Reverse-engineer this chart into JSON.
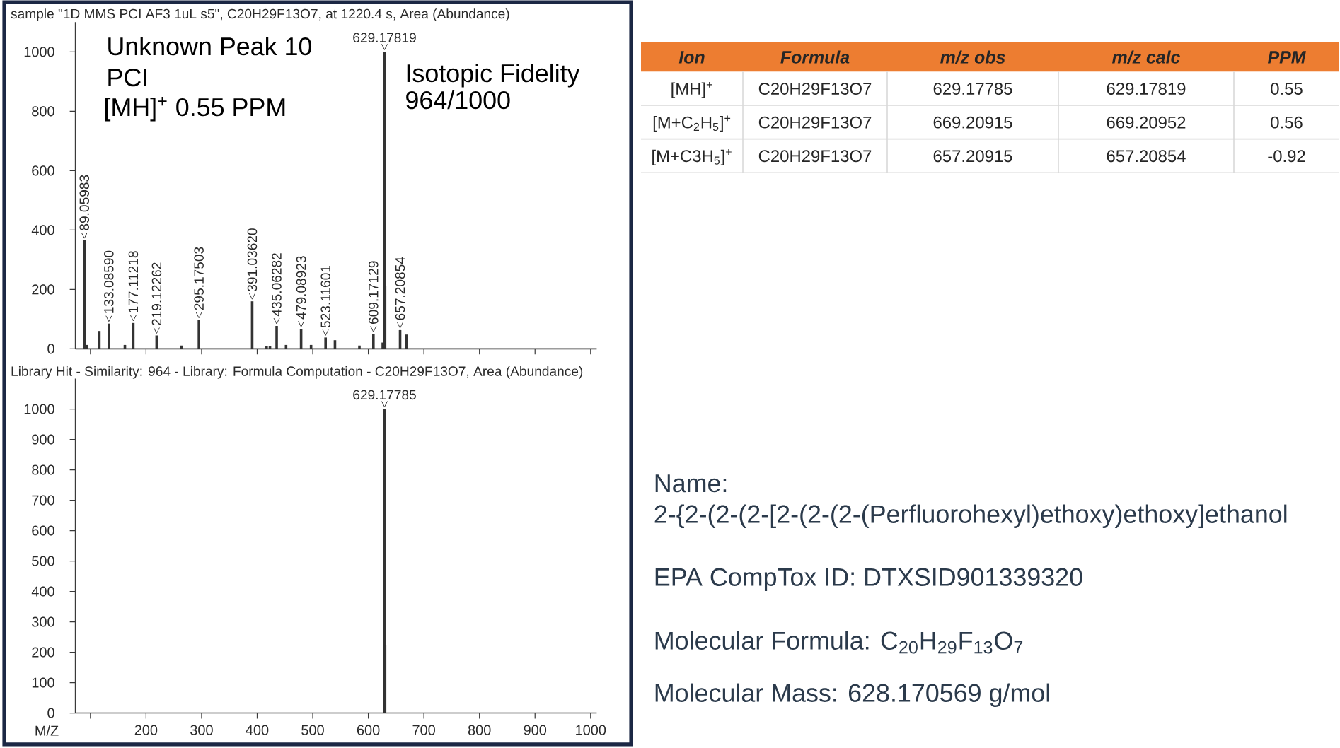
{
  "chart_data": [
    {
      "type": "bar",
      "title": "sample \"1D MMS PCI AF3 1uL s5\", C20H29F13O7,  at 1220.4  s, Area (Abundance)",
      "x": [
        89.05983,
        94,
        116,
        133.0859,
        162,
        177.11218,
        219.12262,
        264,
        295.17503,
        391.0362,
        417,
        423,
        435.06282,
        452,
        479.08923,
        497,
        523.11601,
        540,
        584,
        609.17129,
        626,
        629.17819,
        630.18,
        657.20854,
        669
      ],
      "values": [
        365,
        13,
        60,
        85,
        13,
        87,
        45,
        11,
        97,
        160,
        8,
        10,
        77,
        13,
        67,
        13,
        38,
        29,
        11,
        50,
        21,
        1000,
        211,
        63,
        48
      ],
      "color": "#333333",
      "xlim": [
        73,
        1011
      ],
      "ylim": [
        0,
        1100
      ],
      "xticks": [
        100,
        200,
        300,
        400,
        500,
        600,
        700,
        800,
        900,
        1000
      ],
      "yticks": [
        0,
        200,
        400,
        600,
        800,
        1000
      ],
      "tick_labels": "y",
      "annotations": [
        "Unknown Peak 10",
        "PCI",
        "[MH]$^{+}$  0.55 PPM",
        "Isotopic Fidelity",
        "964/1000",
        {
          "text": "89.05983",
          "x": 89.05983,
          "y": 365
        },
        {
          "text": "133.08590",
          "x": 133.0859,
          "y": 85
        },
        {
          "text": "177.11218",
          "x": 177.11218,
          "y": 87
        },
        {
          "text": "219.12262",
          "x": 219.12262,
          "y": 45
        },
        {
          "text": "295.17503",
          "x": 295.17503,
          "y": 97
        },
        {
          "text": "391.03620",
          "x": 391.0362,
          "y": 160
        },
        {
          "text": "435.06282",
          "x": 435.06282,
          "y": 77
        },
        {
          "text": "479.08923",
          "x": 479.08923,
          "y": 67
        },
        {
          "text": "523.11601",
          "x": 523.11601,
          "y": 38
        },
        {
          "text": "609.17129",
          "x": 609.17129,
          "y": 50
        },
        {
          "text": "629.17819",
          "x": 629.17819,
          "y": 1000
        },
        {
          "text": "657.20854",
          "x": 657.20854,
          "y": 63
        }
      ]
    },
    {
      "type": "bar",
      "title": "Library Hit - Similarity: 964 - Library: Formula Computation  - C20H29F13O7,  Area (Abundance)",
      "xlabel": "M/Z",
      "x": [
        629.17785,
        630.18
      ],
      "values": [
        1000,
        222
      ],
      "color": "#333333",
      "xlim": [
        73,
        1011
      ],
      "ylim": [
        0,
        1100
      ],
      "xticks": [
        {
          "value": 100,
          "label": null
        },
        200,
        300,
        400,
        500,
        600,
        700,
        800,
        900,
        1000
      ],
      "yticks": [
        0,
        100,
        200,
        300,
        400,
        500,
        600,
        700,
        800,
        900,
        1000
      ],
      "annotations": [
        {
          "text": "629.17785",
          "x": 629.17785,
          "y": 1000
        }
      ]
    },
    {
      "type": "other",
      "color": "#ED7D31",
      "categories": [
        "Ion",
        "Formula",
        "m/z obs",
        "m/z calc",
        "PPM"
      ],
      "annotations": [
        "[MH]$^{+}$",
        "C20H29F13O7",
        "629.17785",
        "629.17819",
        "0.55",
        "[M+C$_{2}$H$_{5}$]$^{+}$",
        "C20H29F13O7",
        "669.20915",
        "669.20952",
        "0.56",
        "[M+C3H$_{5}$]$^{+}$",
        "C20H29F13O7",
        "657.20915",
        "657.20854",
        "-0.92"
      ]
    },
    {
      "type": "other",
      "color": "#2B3A4B",
      "annotations": [
        "Name:",
        "2-{2-(2-(2-[2-(2-(2-(Perfluorohexyl)ethoxy)ethoxy]ethanol",
        "EPA CompTox ID: DTXSID901339320",
        "Molecular Formula: C$_{20}$H$_{29}$F$_{13}$O$_{7}$",
        "Molecular Mass: 628.170569  g/mol"
      ]
    }
  ]
}
